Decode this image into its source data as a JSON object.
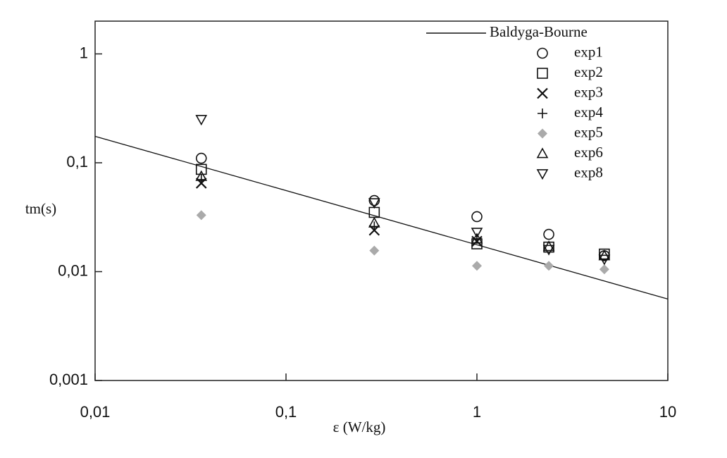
{
  "chart_data": {
    "type": "scatter",
    "log_x": true,
    "log_y": true,
    "x_label": "ε  (W/kg)",
    "y_label": "tm(s)",
    "xlim": [
      0.01,
      10
    ],
    "ylim": [
      0.001,
      2
    ],
    "xticks": [
      {
        "value": 0.01,
        "label": "0,01"
      },
      {
        "value": 0.1,
        "label": "0,1"
      },
      1,
      10
    ],
    "yticks": [
      {
        "value": 0.001,
        "label": "0,001"
      },
      {
        "value": 0.01,
        "label": "0,01"
      },
      {
        "value": 0.1,
        "label": "0,1"
      },
      1
    ],
    "legend": "upper right",
    "series": [
      {
        "name": "Baldyga-Bourne",
        "marker": "line",
        "color": "#111111",
        "x": [
          0.01,
          10
        ],
        "values": [
          0.175,
          0.0056
        ]
      },
      {
        "name": "exp1",
        "marker": "circle",
        "color": "#111111",
        "x": [
          0.036,
          0.29,
          1.0,
          2.38,
          4.65
        ],
        "values": [
          0.11,
          0.045,
          0.032,
          0.022,
          0.014
        ]
      },
      {
        "name": "exp2",
        "marker": "square",
        "color": "#111111",
        "x": [
          0.036,
          0.29,
          1.0,
          2.38,
          4.65
        ],
        "values": [
          0.087,
          0.035,
          0.018,
          0.0168,
          0.0145
        ]
      },
      {
        "name": "exp3",
        "marker": "x",
        "color": "#111111",
        "x": [
          0.036,
          0.29,
          1.0
        ],
        "values": [
          0.065,
          0.024,
          0.019
        ]
      },
      {
        "name": "exp4",
        "marker": "plus",
        "color": "#111111",
        "x": [
          0.036,
          0.29,
          1.0
        ],
        "values": [
          0.07,
          0.026,
          0.02
        ]
      },
      {
        "name": "exp5",
        "marker": "diamond",
        "color": "#aaaaaa",
        "x": [
          0.036,
          0.29,
          1.0,
          2.38,
          4.65
        ],
        "values": [
          0.033,
          0.0156,
          0.0113,
          0.0113,
          0.0105
        ]
      },
      {
        "name": "exp6",
        "marker": "triangle",
        "color": "#111111",
        "x": [
          0.036,
          0.29,
          1.0,
          2.38,
          4.65
        ],
        "values": [
          0.075,
          0.028,
          0.02,
          0.017,
          0.014
        ]
      },
      {
        "name": "exp8",
        "marker": "triangle-down",
        "color": "#111111",
        "x": [
          0.036,
          0.29,
          1.0,
          2.38,
          4.65
        ],
        "values": [
          0.25,
          0.043,
          0.023,
          0.016,
          0.013
        ]
      }
    ]
  }
}
